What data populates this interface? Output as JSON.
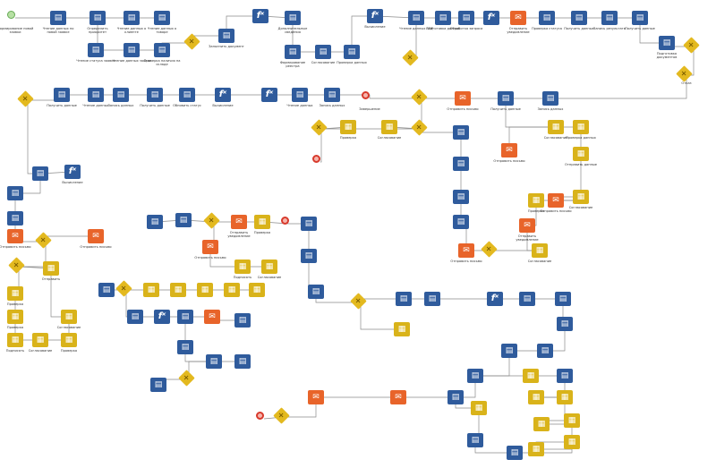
{
  "diagram": {
    "nodes": [
      {
        "id": "start",
        "type": "start",
        "label": "Формирование новой заявки"
      },
      {
        "id": "n1",
        "type": "task",
        "label": "Чтение данных по новой заявке"
      },
      {
        "id": "n2",
        "type": "task",
        "label": "Определить приоритет"
      },
      {
        "id": "n3",
        "type": "task",
        "label": "Чтение данных о клиенте"
      },
      {
        "id": "n4",
        "type": "task",
        "label": "Чтение данных о товаре"
      },
      {
        "id": "n5",
        "type": "task",
        "label": "Чтение статуса заявки"
      },
      {
        "id": "n6",
        "type": "task",
        "label": "Чтение данных заказа"
      },
      {
        "id": "n7",
        "type": "task",
        "label": "Проверка наличия на складе"
      },
      {
        "id": "gw1",
        "type": "gateway",
        "label": ""
      },
      {
        "id": "n8",
        "type": "task",
        "label": "Заполнить документ"
      },
      {
        "id": "f1",
        "type": "fx",
        "label": ""
      },
      {
        "id": "n9",
        "type": "task",
        "label": "Дополнительные сведения"
      },
      {
        "id": "n10",
        "type": "task",
        "label": "Формирование реестра"
      },
      {
        "id": "n11",
        "type": "task",
        "label": "Согласование"
      },
      {
        "id": "n12",
        "type": "task",
        "label": "Проверка данных"
      },
      {
        "id": "f2",
        "type": "fx",
        "label": "Вычисление"
      },
      {
        "id": "n13",
        "type": "task",
        "label": "Чтение данных АПР"
      },
      {
        "id": "n14",
        "type": "task",
        "label": "Подготовка данных"
      },
      {
        "id": "n15",
        "type": "task",
        "label": "Обработка запроса"
      },
      {
        "id": "f3",
        "type": "fx",
        "label": ""
      },
      {
        "id": "m1",
        "type": "mail",
        "label": "Отправить уведомление"
      },
      {
        "id": "n16",
        "type": "task",
        "label": "Проверка статуса"
      },
      {
        "id": "n17",
        "type": "task",
        "label": "Получить данные"
      },
      {
        "id": "n18",
        "type": "task",
        "label": "Запись результата"
      },
      {
        "id": "gw2",
        "type": "gateway",
        "label": ""
      },
      {
        "id": "gw3",
        "type": "gateway",
        "label": ""
      },
      {
        "id": "gw4",
        "type": "gateway",
        "label": "Отказ"
      },
      {
        "id": "m2",
        "type": "mail",
        "label": "Отправить письмо"
      },
      {
        "id": "n19",
        "type": "task",
        "label": "Получить данные"
      },
      {
        "id": "m3",
        "type": "mail",
        "label": "Отправить письмо"
      },
      {
        "id": "n20",
        "type": "task",
        "label": "Подготовка документов"
      },
      {
        "id": "u1",
        "type": "user",
        "label": "Согласование"
      },
      {
        "id": "f4",
        "type": "fx",
        "label": "Вычисление"
      },
      {
        "id": "f5",
        "type": "fx",
        "label": ""
      },
      {
        "id": "u2",
        "type": "user",
        "label": "Проверка данных"
      },
      {
        "id": "u3",
        "type": "user",
        "label": "Отправить данные"
      },
      {
        "id": "u4",
        "type": "user",
        "label": "Согласование"
      },
      {
        "id": "u5",
        "type": "user",
        "label": "Проверка"
      },
      {
        "id": "m4",
        "type": "mail",
        "label": "Отправить письмо"
      },
      {
        "id": "n21",
        "type": "task",
        "label": "Получить данные"
      },
      {
        "id": "end1",
        "type": "end",
        "label": "Завершение"
      },
      {
        "id": "m5",
        "type": "mail",
        "label": "Отправить уведомление"
      },
      {
        "id": "u6",
        "type": "user",
        "label": "Согласование"
      },
      {
        "id": "m6",
        "type": "mail",
        "label": "Отправить письмо"
      },
      {
        "id": "u7",
        "type": "user",
        "label": "Проверка"
      },
      {
        "id": "u8",
        "type": "user",
        "label": "Согласование"
      },
      {
        "id": "u9",
        "type": "user",
        "label": "Отправить"
      },
      {
        "id": "n22",
        "type": "task",
        "label": "Чтение данных"
      },
      {
        "id": "u10",
        "type": "user",
        "label": "Проверка"
      },
      {
        "id": "n23",
        "type": "task",
        "label": "Запись данных"
      },
      {
        "id": "f6",
        "type": "fx",
        "label": "Вычисление"
      },
      {
        "id": "n24",
        "type": "task",
        "label": "Получить данные"
      },
      {
        "id": "n25",
        "type": "task",
        "label": "Обновить статус"
      },
      {
        "id": "m7",
        "type": "mail",
        "label": "Отправить письмо"
      },
      {
        "id": "m8",
        "type": "mail",
        "label": "Отправить письмо"
      },
      {
        "id": "u11",
        "type": "user",
        "label": "Согласование"
      },
      {
        "id": "u12",
        "type": "user",
        "label": "Проверка"
      },
      {
        "id": "u13",
        "type": "user",
        "label": "Подписать"
      },
      {
        "id": "n26",
        "type": "task",
        "label": "Чтение данных"
      },
      {
        "id": "n27",
        "type": "task",
        "label": "Запись данных"
      },
      {
        "id": "gw5",
        "type": "gateway",
        "label": ""
      },
      {
        "id": "m9",
        "type": "mail",
        "label": "Отправить уведомление"
      },
      {
        "id": "m10",
        "type": "mail",
        "label": "Отправить письмо"
      },
      {
        "id": "end2",
        "type": "end",
        "label": ""
      },
      {
        "id": "n28",
        "type": "task",
        "label": "Получить данные"
      },
      {
        "id": "n29",
        "type": "task",
        "label": "Запись данных"
      },
      {
        "id": "u14",
        "type": "user",
        "label": "Согласование"
      },
      {
        "id": "u15",
        "type": "user",
        "label": "Проверка"
      },
      {
        "id": "u16",
        "type": "user",
        "label": "Проверка"
      },
      {
        "id": "u17",
        "type": "user",
        "label": "Подписать"
      },
      {
        "id": "u18",
        "type": "user",
        "label": "Согласование"
      },
      {
        "id": "end3",
        "type": "end",
        "label": ""
      },
      {
        "id": "gw6",
        "type": "gateway",
        "label": ""
      }
    ]
  }
}
